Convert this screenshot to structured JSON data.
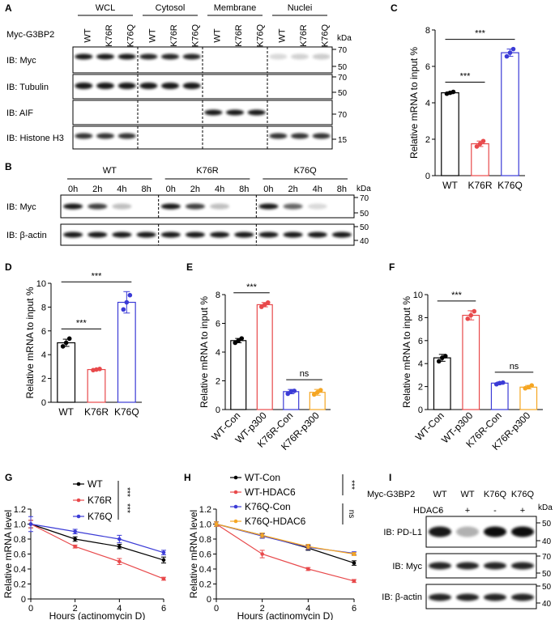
{
  "panels": {
    "A": {
      "label": "A",
      "groups": [
        "WCL",
        "Cytosol",
        "Membrane",
        "Nuclei"
      ],
      "row_header": "Myc-G3BP2",
      "lanes": [
        "WT",
        "K76R",
        "K76Q"
      ],
      "kda_label": "kDa",
      "blots": [
        {
          "label": "IB: Myc",
          "markers": [
            "70",
            "50"
          ]
        },
        {
          "label": "IB: Tubulin",
          "markers": [
            "70",
            "50"
          ]
        },
        {
          "label": "IB: AIF",
          "markers": [
            "70"
          ]
        },
        {
          "label": "IB: Histone H3",
          "markers": [
            "15"
          ]
        }
      ]
    },
    "B": {
      "label": "B",
      "groups": [
        "WT",
        "K76R",
        "K76Q"
      ],
      "times": [
        "0h",
        "2h",
        "4h",
        "8h"
      ],
      "kda_label": "kDa",
      "blots": [
        {
          "label": "IB: Myc",
          "markers": [
            "70",
            "50"
          ]
        },
        {
          "label": "IB: β-actin",
          "markers": [
            "50",
            "40"
          ]
        }
      ]
    },
    "I": {
      "label": "I",
      "row_header": "Myc-G3BP2",
      "lanes": [
        "WT",
        "WT",
        "K76Q",
        "K76Q"
      ],
      "row2_header": "HDAC6",
      "row2": [
        "-",
        "+",
        "-",
        "+"
      ],
      "kda_label": "kDa",
      "blots": [
        {
          "label": "IB: PD-L1",
          "markers": [
            "50",
            "40"
          ]
        },
        {
          "label": "IB: Myc",
          "markers": [
            "70",
            "50"
          ]
        },
        {
          "label": "IB:  β-actin",
          "markers": [
            "50",
            "40"
          ]
        }
      ]
    }
  },
  "chart_data": [
    {
      "id": "C",
      "label": "C",
      "type": "bar",
      "categories": [
        "WT",
        "K76R",
        "K76Q"
      ],
      "values": [
        4.55,
        1.75,
        6.75
      ],
      "points": [
        [
          4.5,
          4.55,
          4.6
        ],
        [
          1.6,
          1.75,
          1.9
        ],
        [
          6.55,
          6.75,
          6.95
        ]
      ],
      "errors": [
        0.05,
        0.15,
        0.2
      ],
      "colors": [
        "#000000",
        "#e8494b",
        "#3b3bd6"
      ],
      "ylabel": "Relative mRNA to input %",
      "ylim": [
        0,
        8
      ],
      "yticks": [
        0,
        2,
        4,
        6,
        8
      ],
      "significance": [
        {
          "from": 0,
          "to": 1,
          "text": "***"
        },
        {
          "from": 0,
          "to": 2,
          "text": "***"
        }
      ]
    },
    {
      "id": "D",
      "label": "D",
      "type": "bar",
      "categories": [
        "WT",
        "K76R",
        "K76Q"
      ],
      "values": [
        5.0,
        2.75,
        8.4
      ],
      "points": [
        [
          4.7,
          5.0,
          5.35
        ],
        [
          2.7,
          2.75,
          2.8
        ],
        [
          7.8,
          8.4,
          9.0
        ]
      ],
      "errors": [
        0.3,
        0.05,
        0.9
      ],
      "colors": [
        "#000000",
        "#e8494b",
        "#3b3bd6"
      ],
      "ylabel": "Relative mRNA to input %",
      "ylim": [
        0,
        10
      ],
      "yticks": [
        0,
        2,
        4,
        6,
        8,
        10
      ],
      "significance": [
        {
          "from": 0,
          "to": 1,
          "text": "***"
        },
        {
          "from": 0,
          "to": 2,
          "text": "***"
        }
      ]
    },
    {
      "id": "E",
      "label": "E",
      "type": "bar",
      "categories": [
        "WT-Con",
        "WT-p300",
        "K76R-Con",
        "K76R-p300"
      ],
      "values": [
        4.8,
        7.3,
        1.25,
        1.2
      ],
      "points": [
        [
          4.65,
          4.8,
          4.95
        ],
        [
          7.15,
          7.3,
          7.45
        ],
        [
          1.1,
          1.25,
          1.3
        ],
        [
          1.05,
          1.2,
          1.35
        ]
      ],
      "errors": [
        0.15,
        0.15,
        0.15,
        0.2
      ],
      "colors": [
        "#000000",
        "#e8494b",
        "#3b3bd6",
        "#f5a623"
      ],
      "ylabel": "Relative mRNA to input %",
      "ylim": [
        0,
        8
      ],
      "yticks": [
        0,
        2,
        4,
        6,
        8
      ],
      "significance": [
        {
          "from": 0,
          "to": 1,
          "text": "***"
        },
        {
          "from": 2,
          "to": 3,
          "text": "ns"
        }
      ]
    },
    {
      "id": "F",
      "label": "F",
      "type": "bar",
      "categories": [
        "WT-Con",
        "WT-p300",
        "K76R-Con",
        "K76R-p300"
      ],
      "values": [
        4.5,
        8.2,
        2.3,
        1.95
      ],
      "points": [
        [
          4.2,
          4.5,
          4.65
        ],
        [
          7.9,
          8.2,
          8.55
        ],
        [
          2.2,
          2.3,
          2.35
        ],
        [
          1.85,
          1.95,
          2.1
        ]
      ],
      "errors": [
        0.3,
        0.4,
        0.1,
        0.15
      ],
      "colors": [
        "#000000",
        "#e8494b",
        "#3b3bd6",
        "#f5a623"
      ],
      "ylabel": "Relative mRNA to input %",
      "ylim": [
        0,
        10
      ],
      "yticks": [
        0,
        2,
        4,
        6,
        8,
        10
      ],
      "significance": [
        {
          "from": 0,
          "to": 1,
          "text": "***"
        },
        {
          "from": 2,
          "to": 3,
          "text": "ns"
        }
      ]
    },
    {
      "id": "G",
      "label": "G",
      "type": "line",
      "x": [
        0,
        2,
        4,
        6
      ],
      "series": [
        {
          "name": "WT",
          "color": "#000000",
          "values": [
            1.0,
            0.8,
            0.7,
            0.52
          ],
          "errors": [
            0.05,
            0.03,
            0.03,
            0.04
          ]
        },
        {
          "name": "K76R",
          "color": "#e8494b",
          "values": [
            1.0,
            0.7,
            0.5,
            0.27
          ],
          "errors": [
            0.05,
            0.02,
            0.04,
            0.02
          ]
        },
        {
          "name": "K76Q",
          "color": "#3b3bd6",
          "values": [
            1.0,
            0.9,
            0.8,
            0.62
          ],
          "errors": [
            0.1,
            0.03,
            0.05,
            0.03
          ]
        }
      ],
      "xlabel": "Hours (actinomycin D)",
      "ylabel": "Relative mRNA level",
      "xlim": [
        0,
        6
      ],
      "ylim": [
        0,
        1.2
      ],
      "xticks": [
        0,
        2,
        4,
        6
      ],
      "yticks": [
        0,
        0.2,
        0.4,
        0.6,
        0.8,
        1.0,
        1.2
      ],
      "ytick_labels": [
        "0",
        "0.2",
        "0.4",
        "0.6",
        "0.8",
        "1.0",
        "1.2"
      ],
      "significance": [
        {
          "between": [
            0,
            1
          ],
          "text": "***"
        },
        {
          "between": [
            1,
            2
          ],
          "text": "***"
        }
      ]
    },
    {
      "id": "H",
      "label": "H",
      "type": "line",
      "x": [
        0,
        2,
        4,
        6
      ],
      "series": [
        {
          "name": "WT-Con",
          "color": "#000000",
          "values": [
            1.0,
            0.85,
            0.68,
            0.48
          ],
          "errors": [
            0.03,
            0.03,
            0.03,
            0.03
          ]
        },
        {
          "name": "WT-HDAC6",
          "color": "#e8494b",
          "values": [
            1.0,
            0.6,
            0.4,
            0.24
          ],
          "errors": [
            0.03,
            0.05,
            0.02,
            0.02
          ]
        },
        {
          "name": "K76Q-Con",
          "color": "#3b3bd6",
          "values": [
            1.0,
            0.84,
            0.69,
            0.61
          ],
          "errors": [
            0.03,
            0.03,
            0.03,
            0.02
          ]
        },
        {
          "name": "K76Q-HDAC6",
          "color": "#f5a623",
          "values": [
            1.0,
            0.85,
            0.7,
            0.6
          ],
          "errors": [
            0.03,
            0.03,
            0.03,
            0.02
          ]
        }
      ],
      "xlabel": "Hours (actinomycin D)",
      "ylabel": "Relative mRNA level",
      "xlim": [
        0,
        6
      ],
      "ylim": [
        0,
        1.2
      ],
      "xticks": [
        0,
        2,
        4,
        6
      ],
      "yticks": [
        0,
        0.2,
        0.4,
        0.6,
        0.8,
        1.0,
        1.2
      ],
      "ytick_labels": [
        "0",
        "0.2",
        "0.4",
        "0.6",
        "0.8",
        "1.0",
        "1.2"
      ],
      "significance": [
        {
          "between": [
            0,
            1
          ],
          "text": "***"
        },
        {
          "between": [
            2,
            3
          ],
          "text": "ns"
        }
      ]
    }
  ]
}
